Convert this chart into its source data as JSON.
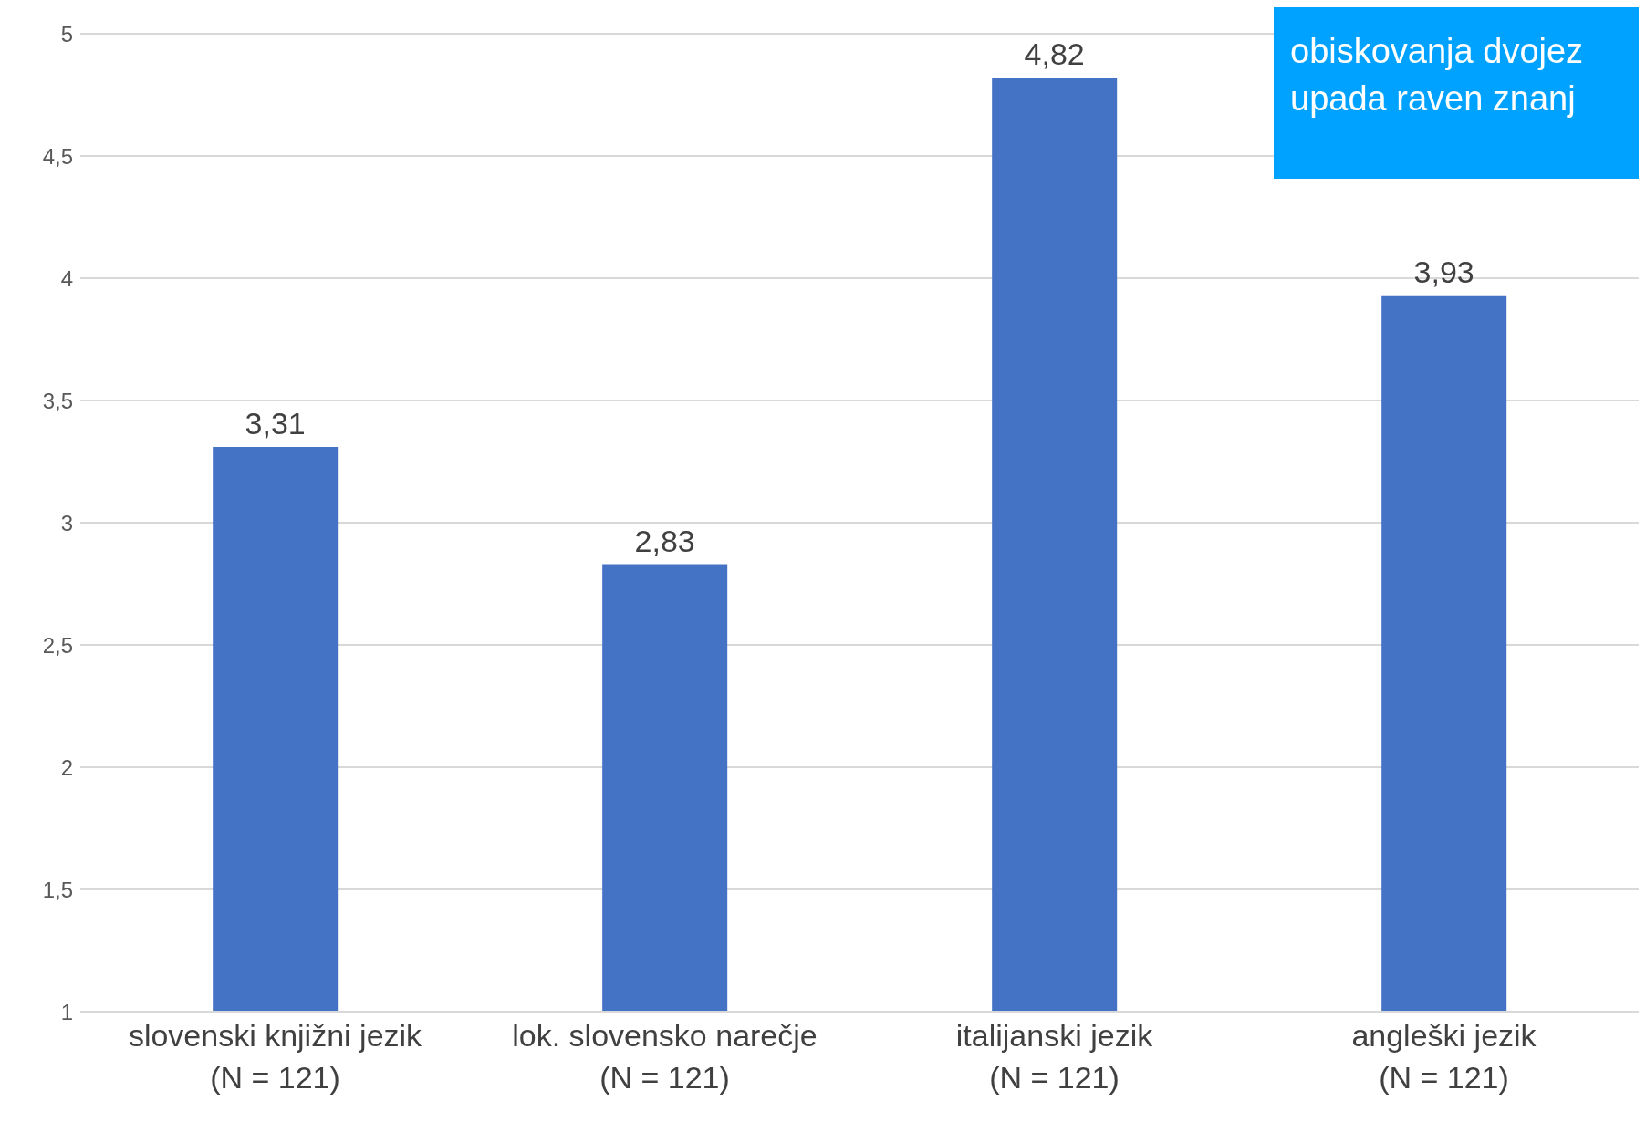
{
  "chart_data": {
    "type": "bar",
    "categories": [
      "slovenski knjižni jezik\n(N = 121)",
      "lok. slovensko narečje\n(N = 121)",
      "italijanski jezik\n(N = 121)",
      "angleški jezik\n(N = 121)"
    ],
    "values": [
      3.31,
      2.83,
      4.82,
      3.93
    ],
    "value_labels": [
      "3,31",
      "2,83",
      "4,82",
      "3,93"
    ],
    "color": "#4472c4",
    "ylim": [
      1,
      5
    ],
    "yticks": [
      1,
      {
        "value": 1.5,
        "label": "1,5"
      },
      2,
      {
        "value": 2.5,
        "label": "2,5"
      },
      3,
      {
        "value": 3.5,
        "label": "3,5"
      },
      4,
      {
        "value": 4.5,
        "label": "4,5"
      },
      5
    ],
    "grid": "y",
    "annotations": [
      "obiskovanja dvojez\nupada raven znanj"
    ]
  }
}
